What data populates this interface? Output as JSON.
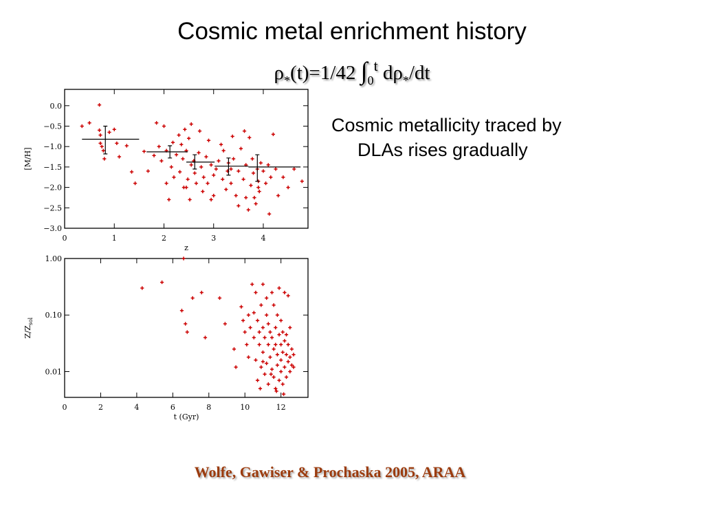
{
  "slide": {
    "title": "Cosmic metal enrichment history",
    "formula": {
      "rho": "ρ",
      "star": "*",
      "t_arg": "(t)=1/42 ",
      "integral": "∫",
      "lower": "0",
      "upper": "t",
      "d": " dρ",
      "dt": "/dt"
    },
    "bullet_line1": "Cosmic metallicity traced by",
    "bullet_line2": "DLAs rises gradually",
    "citation": "Wolfe, Gawiser & Prochaska 2005, ARAA"
  },
  "colors": {
    "points": "#cc0000",
    "axes": "#000000",
    "citation": "#9b3b0e"
  },
  "chart_data": [
    {
      "type": "scatter",
      "xlabel": "z",
      "ylabel": "[M/H]",
      "xlim": [
        0,
        4.9
      ],
      "ylim": [
        -3.0,
        0.4
      ],
      "xticks": [
        "0",
        "1",
        "2",
        "3",
        "4"
      ],
      "xtick_values": [
        0,
        1,
        2,
        3,
        4
      ],
      "yticks": [
        "0.0",
        "−0.5",
        "−1.0",
        "−1.5",
        "−2.0",
        "−2.5",
        "−3.0"
      ],
      "ytick_values": [
        0.0,
        -0.5,
        -1.0,
        -1.5,
        -2.0,
        -2.5,
        -3.0
      ],
      "points": [
        [
          0.35,
          -0.5
        ],
        [
          0.5,
          -0.42
        ],
        [
          0.7,
          -0.6
        ],
        [
          0.72,
          -0.72
        ],
        [
          0.72,
          -0.92
        ],
        [
          0.75,
          -1.0
        ],
        [
          0.78,
          -1.1
        ],
        [
          0.8,
          -1.3
        ],
        [
          0.7,
          0.02
        ],
        [
          0.9,
          -0.65
        ],
        [
          1.0,
          -0.58
        ],
        [
          1.05,
          -0.92
        ],
        [
          1.1,
          -1.25
        ],
        [
          1.25,
          -0.98
        ],
        [
          1.35,
          -1.62
        ],
        [
          1.42,
          -1.9
        ],
        [
          1.6,
          -1.12
        ],
        [
          1.68,
          -1.6
        ],
        [
          1.8,
          -1.22
        ],
        [
          1.85,
          -0.42
        ],
        [
          1.9,
          -1.0
        ],
        [
          1.95,
          -1.35
        ],
        [
          2.0,
          -0.5
        ],
        [
          2.05,
          -1.1
        ],
        [
          2.05,
          -1.9
        ],
        [
          2.1,
          -2.3
        ],
        [
          2.15,
          -1.5
        ],
        [
          2.18,
          -0.9
        ],
        [
          2.25,
          -1.2
        ],
        [
          2.3,
          -0.72
        ],
        [
          2.32,
          -1.62
        ],
        [
          2.35,
          -0.95
        ],
        [
          2.38,
          -1.3
        ],
        [
          2.4,
          -2.0
        ],
        [
          2.42,
          -0.58
        ],
        [
          2.45,
          -1.1
        ],
        [
          2.48,
          -1.8
        ],
        [
          2.5,
          -0.8
        ],
        [
          2.52,
          -2.3
        ],
        [
          2.55,
          -0.45
        ],
        [
          2.55,
          -1.45
        ],
        [
          2.6,
          -1.35
        ],
        [
          2.62,
          -1.65
        ],
        [
          2.65,
          -1.9
        ],
        [
          2.7,
          -1.15
        ],
        [
          2.72,
          -0.62
        ],
        [
          2.75,
          -1.5
        ],
        [
          2.78,
          -2.1
        ],
        [
          2.8,
          -1.75
        ],
        [
          2.85,
          -1.25
        ],
        [
          2.88,
          -1.9
        ],
        [
          2.9,
          -0.85
        ],
        [
          2.95,
          -1.45
        ],
        [
          3.0,
          -2.2
        ],
        [
          3.05,
          -1.55
        ],
        [
          3.1,
          -1.35
        ],
        [
          3.15,
          -0.95
        ],
        [
          3.18,
          -1.8
        ],
        [
          3.2,
          -1.1
        ],
        [
          3.25,
          -2.05
        ],
        [
          3.28,
          -1.6
        ],
        [
          3.3,
          -1.4
        ],
        [
          3.35,
          -1.9
        ],
        [
          3.38,
          -0.75
        ],
        [
          3.4,
          -1.3
        ],
        [
          3.45,
          -2.2
        ],
        [
          3.5,
          -1.6
        ],
        [
          3.55,
          -1.05
        ],
        [
          3.6,
          -1.8
        ],
        [
          3.62,
          -0.62
        ],
        [
          3.65,
          -1.45
        ],
        [
          3.7,
          -2.55
        ],
        [
          3.72,
          -0.78
        ],
        [
          3.75,
          -1.95
        ],
        [
          3.78,
          -1.3
        ],
        [
          3.8,
          -1.65
        ],
        [
          3.82,
          -2.25
        ],
        [
          3.85,
          -2.4
        ],
        [
          3.88,
          -1.55
        ],
        [
          3.9,
          -1.85
        ],
        [
          3.92,
          -2.1
        ],
        [
          3.95,
          -1.4
        ],
        [
          4.0,
          -1.6
        ],
        [
          4.05,
          -1.9
        ],
        [
          4.1,
          -1.45
        ],
        [
          4.12,
          -2.65
        ],
        [
          4.15,
          -1.75
        ],
        [
          4.2,
          -0.7
        ],
        [
          4.25,
          -1.55
        ],
        [
          4.3,
          -2.2
        ],
        [
          4.4,
          -1.75
        ],
        [
          4.5,
          -2.0
        ],
        [
          4.62,
          -1.55
        ],
        [
          4.78,
          -1.85
        ],
        [
          2.45,
          -2.0
        ],
        [
          2.95,
          -2.3
        ],
        [
          3.5,
          -2.45
        ],
        [
          3.65,
          -2.25
        ],
        [
          3.9,
          -2.0
        ],
        [
          2.2,
          -1.75
        ],
        [
          3.0,
          -1.7
        ],
        [
          3.35,
          -1.55
        ]
      ],
      "binned": [
        {
          "x": 0.82,
          "xlo": 0.35,
          "xhi": 1.5,
          "y": -0.82,
          "ylo": -1.18,
          "yhi": -0.5
        },
        {
          "x": 2.12,
          "xlo": 1.65,
          "xhi": 2.48,
          "y": -1.13,
          "ylo": -1.28,
          "yhi": -0.98
        },
        {
          "x": 2.62,
          "xlo": 2.45,
          "xhi": 3.02,
          "y": -1.38,
          "ylo": -1.55,
          "yhi": -1.2
        },
        {
          "x": 3.3,
          "xlo": 3.02,
          "xhi": 3.7,
          "y": -1.48,
          "ylo": -1.7,
          "yhi": -1.28
        },
        {
          "x": 3.88,
          "xlo": 3.7,
          "xhi": 4.75,
          "y": -1.5,
          "ylo": -1.85,
          "yhi": -1.2
        }
      ]
    },
    {
      "type": "scatter",
      "xlabel": "t (Gyr)",
      "ylabel": "Z/Z",
      "ylabel_sub": "sol",
      "yscale": "log",
      "xlim": [
        0,
        13.5
      ],
      "ylim": [
        0.0035,
        1.0
      ],
      "xticks": [
        "0",
        "2",
        "4",
        "6",
        "8",
        "10",
        "12"
      ],
      "xtick_values": [
        0,
        2,
        4,
        6,
        8,
        10,
        12
      ],
      "yticks": [
        "1.00",
        "0.10",
        "0.01"
      ],
      "ytick_values": [
        1.0,
        0.1,
        0.01
      ],
      "points": [
        [
          4.3,
          0.3
        ],
        [
          5.4,
          0.38
        ],
        [
          6.5,
          0.12
        ],
        [
          6.6,
          1.0
        ],
        [
          6.7,
          0.07
        ],
        [
          6.8,
          0.05
        ],
        [
          7.1,
          0.2
        ],
        [
          7.6,
          0.25
        ],
        [
          7.8,
          0.04
        ],
        [
          8.6,
          0.2
        ],
        [
          8.9,
          0.07
        ],
        [
          9.4,
          0.025
        ],
        [
          9.5,
          0.012
        ],
        [
          9.8,
          0.14
        ],
        [
          9.9,
          0.08
        ],
        [
          10.0,
          0.05
        ],
        [
          10.1,
          0.03
        ],
        [
          10.2,
          0.1
        ],
        [
          10.2,
          0.018
        ],
        [
          10.3,
          0.06
        ],
        [
          10.4,
          0.35
        ],
        [
          10.5,
          0.11
        ],
        [
          10.5,
          0.04
        ],
        [
          10.6,
          0.25
        ],
        [
          10.6,
          0.016
        ],
        [
          10.7,
          0.007
        ],
        [
          10.7,
          0.08
        ],
        [
          10.8,
          0.05
        ],
        [
          10.8,
          0.03
        ],
        [
          10.9,
          0.012
        ],
        [
          10.9,
          0.15
        ],
        [
          11.0,
          0.35
        ],
        [
          11.0,
          0.06
        ],
        [
          11.0,
          0.022
        ],
        [
          11.1,
          0.009
        ],
        [
          11.1,
          0.04
        ],
        [
          11.2,
          0.2
        ],
        [
          11.2,
          0.1
        ],
        [
          11.2,
          0.014
        ],
        [
          11.3,
          0.03
        ],
        [
          11.3,
          0.006
        ],
        [
          11.3,
          0.07
        ],
        [
          11.4,
          0.05
        ],
        [
          11.4,
          0.018
        ],
        [
          11.5,
          0.25
        ],
        [
          11.5,
          0.011
        ],
        [
          11.5,
          0.04
        ],
        [
          11.6,
          0.15
        ],
        [
          11.6,
          0.025
        ],
        [
          11.6,
          0.008
        ],
        [
          11.7,
          0.06
        ],
        [
          11.7,
          0.03
        ],
        [
          11.7,
          0.005
        ],
        [
          11.8,
          0.1
        ],
        [
          11.8,
          0.02
        ],
        [
          11.8,
          0.013
        ],
        [
          11.9,
          0.045
        ],
        [
          11.9,
          0.007
        ],
        [
          11.9,
          0.3
        ],
        [
          12.0,
          0.08
        ],
        [
          12.0,
          0.03
        ],
        [
          12.0,
          0.016
        ],
        [
          12.0,
          0.01
        ],
        [
          12.1,
          0.05
        ],
        [
          12.1,
          0.022
        ],
        [
          12.1,
          0.006
        ],
        [
          12.2,
          0.035
        ],
        [
          12.2,
          0.012
        ],
        [
          12.2,
          0.25
        ],
        [
          12.3,
          0.02
        ],
        [
          12.3,
          0.045
        ],
        [
          12.3,
          0.008
        ],
        [
          12.4,
          0.015
        ],
        [
          12.4,
          0.03
        ],
        [
          12.4,
          0.22
        ],
        [
          12.5,
          0.06
        ],
        [
          12.5,
          0.018
        ],
        [
          12.5,
          0.01
        ],
        [
          12.6,
          0.025
        ],
        [
          12.6,
          0.013
        ],
        [
          12.7,
          0.02
        ],
        [
          12.7,
          0.012
        ],
        [
          11.0,
          0.015
        ],
        [
          11.45,
          0.009
        ],
        [
          10.85,
          0.005
        ],
        [
          12.15,
          0.004
        ],
        [
          11.75,
          0.0045
        ]
      ]
    }
  ]
}
